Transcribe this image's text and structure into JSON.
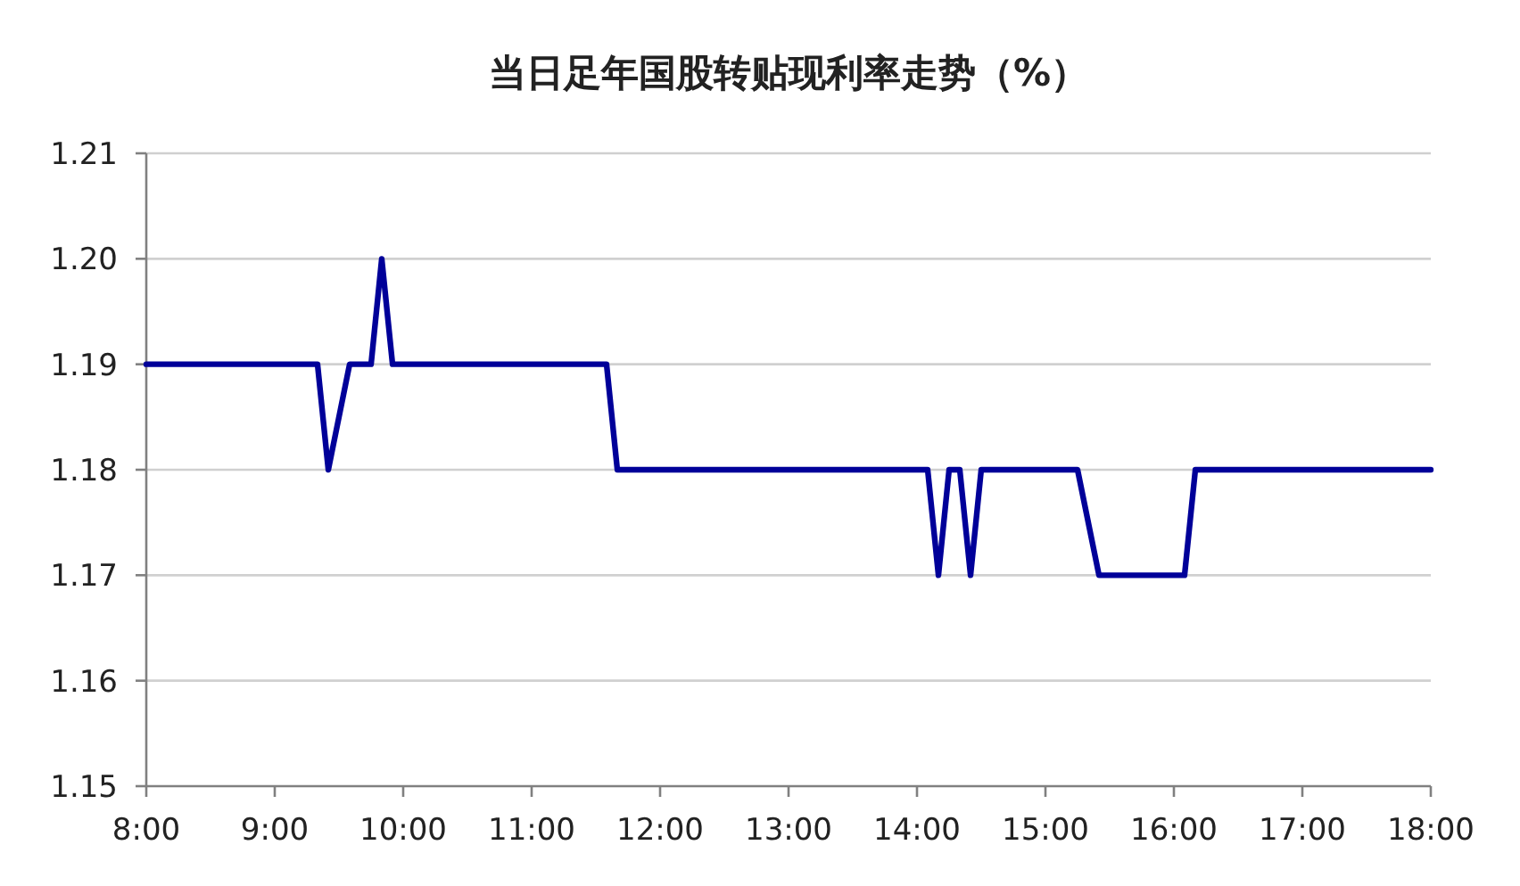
{
  "chart_data": {
    "type": "line",
    "title": "当日足年国股转贴现利率走势（%）",
    "x": [
      8,
      9.333,
      9.417,
      9.583,
      9.75,
      9.833,
      9.917,
      11.583,
      11.667,
      14.083,
      14.167,
      14.25,
      14.333,
      14.417,
      14.5,
      15.25,
      15.417,
      16.083,
      16.167,
      18
    ],
    "series": [
      {
        "color": "#000099",
        "values": [
          1.19,
          1.19,
          1.18,
          1.19,
          1.19,
          1.2,
          1.19,
          1.19,
          1.18,
          1.18,
          1.17,
          1.18,
          1.18,
          1.17,
          1.18,
          1.18,
          1.17,
          1.17,
          1.18,
          1.18
        ]
      }
    ],
    "xlim": [
      8,
      18
    ],
    "xticks": [
      {
        "value": 8,
        "label": "8:00"
      },
      {
        "value": 9,
        "label": "9:00"
      },
      {
        "value": 10,
        "label": "10:00"
      },
      {
        "value": 11,
        "label": "11:00"
      },
      {
        "value": 12,
        "label": "12:00"
      },
      {
        "value": 13,
        "label": "13:00"
      },
      {
        "value": 14,
        "label": "14:00"
      },
      {
        "value": 15,
        "label": "15:00"
      },
      {
        "value": 16,
        "label": "16:00"
      },
      {
        "value": 17,
        "label": "17:00"
      },
      {
        "value": 18,
        "label": "18:00"
      }
    ],
    "ylim": [
      1.15,
      1.21
    ],
    "yticks": [
      1.15,
      1.16,
      1.17,
      1.18,
      1.19,
      {
        "value": 1.2,
        "label": "1.20"
      },
      1.21
    ],
    "grid": "y",
    "marker": "none",
    "line_style": "solid"
  }
}
